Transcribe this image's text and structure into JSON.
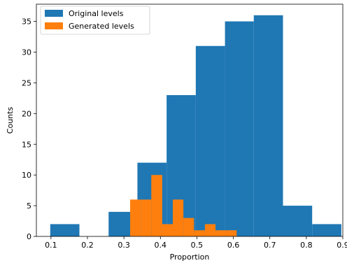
{
  "chart_data": {
    "type": "bar",
    "title": "",
    "xlabel": "Proportion",
    "ylabel": "Counts",
    "xlim": [
      0.06,
      0.9
    ],
    "ylim": [
      0,
      37.8
    ],
    "xticks": [
      0.1,
      0.2,
      0.3,
      0.4,
      0.5,
      0.6,
      0.7,
      0.8,
      0.9
    ],
    "yticks": [
      0,
      5,
      10,
      15,
      20,
      25,
      30,
      35
    ],
    "grid": false,
    "legend": "top-left",
    "series": [
      {
        "name": "Original levels",
        "color": "#1f77b4",
        "bin_edges": [
          0.098,
          0.178,
          0.258,
          0.337,
          0.417,
          0.497,
          0.577,
          0.656,
          0.736,
          0.816,
          0.896
        ],
        "values": [
          2,
          0,
          4,
          12,
          23,
          31,
          35,
          36,
          5,
          2
        ]
      },
      {
        "name": "Generated levels",
        "color": "#ff7f0e",
        "bin_edges": [
          0.317,
          0.346,
          0.375,
          0.405,
          0.434,
          0.463,
          0.492,
          0.522,
          0.551,
          0.58,
          0.609
        ],
        "values": [
          6,
          6,
          10,
          2,
          6,
          3,
          1,
          2,
          1,
          1
        ]
      }
    ]
  }
}
